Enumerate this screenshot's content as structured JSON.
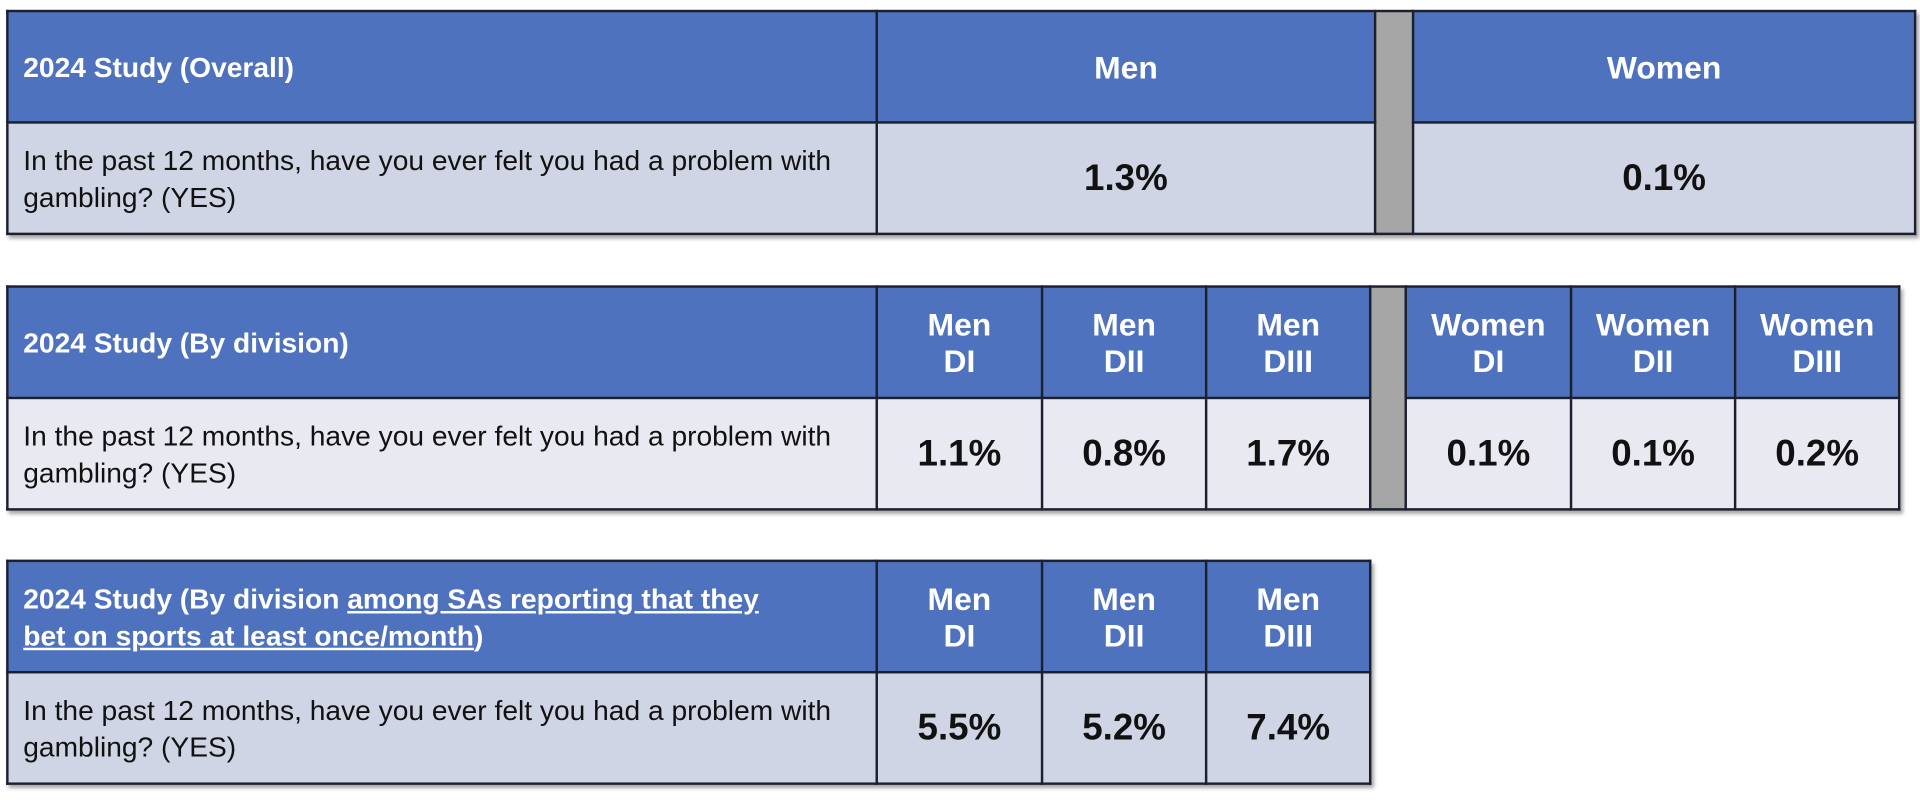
{
  "tables": [
    {
      "title": "2024 Study (Overall)",
      "columns": [
        "Men",
        "Women"
      ],
      "row_label": "In the past 12 months, have you ever felt you had a problem with gambling? (YES)",
      "values": [
        "1.3%",
        "0.1%"
      ]
    },
    {
      "title": "2024 Study (By division)",
      "columns": [
        {
          "line1": "Men",
          "line2": "DI"
        },
        {
          "line1": "Men",
          "line2": "DII"
        },
        {
          "line1": "Men",
          "line2": "DIII"
        },
        {
          "line1": "Women",
          "line2": "DI"
        },
        {
          "line1": "Women",
          "line2": "DII"
        },
        {
          "line1": "Women",
          "line2": "DIII"
        }
      ],
      "row_label": "In the past 12 months, have you ever felt you had a problem with gambling? (YES)",
      "values": [
        "1.1%",
        "0.8%",
        "1.7%",
        "0.1%",
        "0.1%",
        "0.2%"
      ]
    },
    {
      "title_prefix": "2024 Study (By division ",
      "title_underlined": "among SAs reporting that they bet on sports at least once/month",
      "title_suffix": ")",
      "columns": [
        {
          "line1": "Men",
          "line2": "DI"
        },
        {
          "line1": "Men",
          "line2": "DII"
        },
        {
          "line1": "Men",
          "line2": "DIII"
        }
      ],
      "row_label": "In the past 12 months, have you ever felt you had a problem with gambling? (YES)",
      "values": [
        "5.5%",
        "5.2%",
        "7.4%"
      ]
    }
  ],
  "colors": {
    "header": "#4f72be",
    "row": "#cfd5e4",
    "row_light": "#e9e9f2",
    "separator": "#a6a6a6"
  }
}
